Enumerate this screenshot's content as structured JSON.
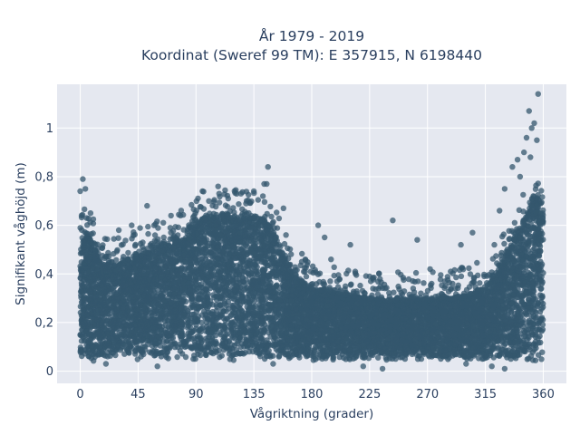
{
  "chart_data": {
    "type": "scatter",
    "title_line1": "År 1979 - 2019",
    "title_line2": "Koordinat (Sweref 99 TM): E 357915, N 6198440",
    "xlabel": "Vågriktning (grader)",
    "ylabel": "Signifikant våghöjd (m)",
    "xlim": [
      -18,
      378
    ],
    "ylim": [
      -0.05,
      1.18
    ],
    "xticks": [
      0,
      45,
      90,
      135,
      180,
      225,
      270,
      315,
      360
    ],
    "xtick_labels": [
      "0",
      "45",
      "90",
      "135",
      "180",
      "225",
      "270",
      "315",
      "360"
    ],
    "yticks": [
      0,
      0.2,
      0.4,
      0.6,
      0.8,
      1
    ],
    "ytick_labels": [
      "0",
      "0,2",
      "0,4",
      "0,6",
      "0,8",
      "1"
    ],
    "grid": true,
    "colors": {
      "marker": "#34576e",
      "plot_bg": "#e5e8f0",
      "grid": "#ffffff",
      "text": "#2a3f5f"
    },
    "envelope": [
      [
        0,
        0.55
      ],
      [
        5,
        0.57
      ],
      [
        15,
        0.46
      ],
      [
        25,
        0.43
      ],
      [
        35,
        0.45
      ],
      [
        45,
        0.47
      ],
      [
        55,
        0.49
      ],
      [
        65,
        0.52
      ],
      [
        75,
        0.53
      ],
      [
        85,
        0.57
      ],
      [
        95,
        0.62
      ],
      [
        105,
        0.64
      ],
      [
        115,
        0.64
      ],
      [
        125,
        0.62
      ],
      [
        135,
        0.63
      ],
      [
        145,
        0.61
      ],
      [
        152,
        0.55
      ],
      [
        160,
        0.44
      ],
      [
        170,
        0.38
      ],
      [
        180,
        0.34
      ],
      [
        190,
        0.33
      ],
      [
        200,
        0.32
      ],
      [
        210,
        0.31
      ],
      [
        225,
        0.3
      ],
      [
        240,
        0.29
      ],
      [
        255,
        0.29
      ],
      [
        270,
        0.3
      ],
      [
        285,
        0.3
      ],
      [
        300,
        0.31
      ],
      [
        315,
        0.34
      ],
      [
        325,
        0.4
      ],
      [
        335,
        0.52
      ],
      [
        345,
        0.62
      ],
      [
        352,
        0.7
      ],
      [
        360,
        0.72
      ]
    ],
    "outliers": [
      [
        2,
        0.79
      ],
      [
        0,
        0.74
      ],
      [
        4,
        0.75
      ],
      [
        8,
        0.65
      ],
      [
        5,
        0.63
      ],
      [
        1,
        0.64
      ],
      [
        30,
        0.58
      ],
      [
        40,
        0.6
      ],
      [
        52,
        0.68
      ],
      [
        70,
        0.59
      ],
      [
        78,
        0.64
      ],
      [
        95,
        0.74
      ],
      [
        100,
        0.7
      ],
      [
        108,
        0.73
      ],
      [
        115,
        0.71
      ],
      [
        125,
        0.73
      ],
      [
        135,
        0.74
      ],
      [
        143,
        0.77
      ],
      [
        145,
        0.77
      ],
      [
        142,
        0.72
      ],
      [
        146,
        0.84
      ],
      [
        158,
        0.67
      ],
      [
        160,
        0.56
      ],
      [
        175,
        0.46
      ],
      [
        185,
        0.6
      ],
      [
        190,
        0.55
      ],
      [
        195,
        0.46
      ],
      [
        210,
        0.52
      ],
      [
        225,
        0.39
      ],
      [
        243,
        0.62
      ],
      [
        262,
        0.54
      ],
      [
        272,
        0.42
      ],
      [
        288,
        0.41
      ],
      [
        296,
        0.52
      ],
      [
        305,
        0.57
      ],
      [
        322,
        0.52
      ],
      [
        326,
        0.66
      ],
      [
        330,
        0.75
      ],
      [
        336,
        0.84
      ],
      [
        340,
        0.87
      ],
      [
        345,
        0.9
      ],
      [
        347,
        0.96
      ],
      [
        349,
        1.07
      ],
      [
        351,
        1.0
      ],
      [
        353,
        1.02
      ],
      [
        356,
        1.14
      ],
      [
        342,
        0.8
      ],
      [
        350,
        0.88
      ],
      [
        355,
        0.95
      ],
      [
        20,
        0.03
      ],
      [
        60,
        0.02
      ],
      [
        150,
        0.03
      ],
      [
        220,
        0.02
      ],
      [
        235,
        0.01
      ],
      [
        300,
        0.03
      ],
      [
        320,
        0.02
      ],
      [
        330,
        0.01
      ]
    ]
  }
}
